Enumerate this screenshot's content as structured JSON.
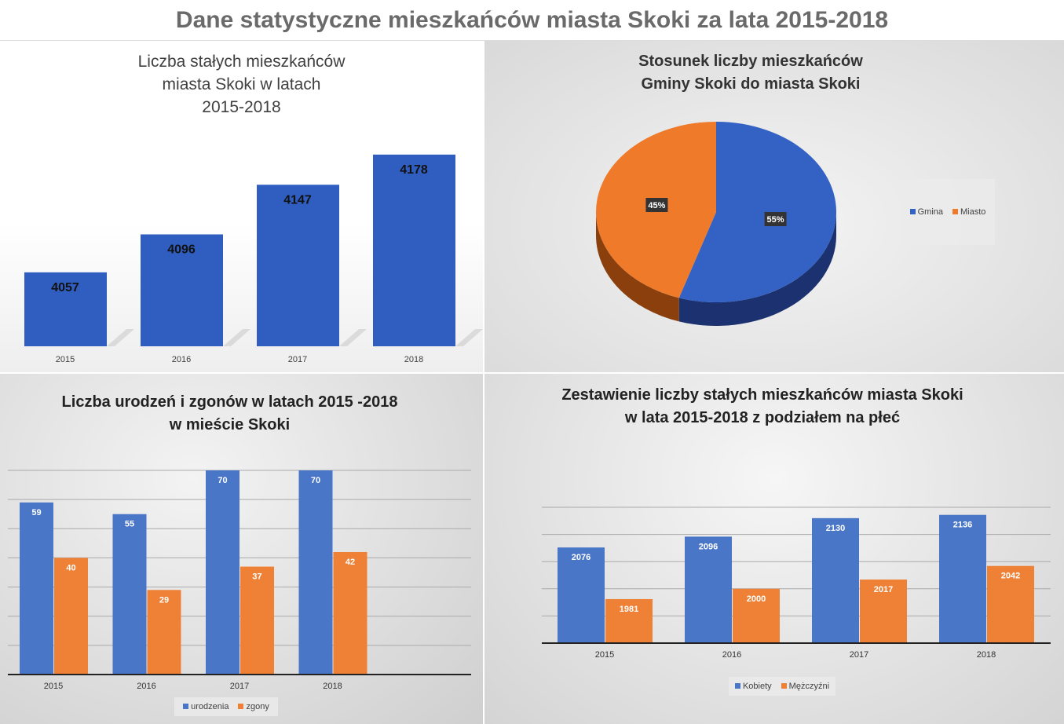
{
  "title": "Dane statystyczne mieszkańców miasta Skoki za lata 2015-2018",
  "chart_data": [
    {
      "type": "bar",
      "title": "Liczba stałych mieszkańców\nmiasta Skoki w latach\n2015-2018",
      "categories": [
        "2015",
        "2016",
        "2017",
        "2018"
      ],
      "values": [
        4057,
        4096,
        4147,
        4178
      ],
      "labels": [
        "4057",
        "4096",
        "4147",
        "4178"
      ],
      "ylim": [
        3981,
        4190
      ],
      "color": "#2f5ec0"
    },
    {
      "type": "pie",
      "title": "Stosunek liczby mieszkańców\nGminy Skoki do miasta Skoki",
      "slices": [
        {
          "name": "Gmina",
          "value": 55,
          "label": "55%",
          "color": "#3462c4"
        },
        {
          "name": "Miasto",
          "value": 45,
          "label": "45%",
          "color": "#ee7a2a"
        }
      ],
      "legend": "right"
    },
    {
      "type": "bar",
      "title": "Liczba urodzeń i zgonów w latach 2015 -2018\nw mieście Skoki",
      "categories": [
        "2015",
        "2016",
        "2017",
        "2018"
      ],
      "series": [
        {
          "name": "urodzenia",
          "values": [
            59,
            55,
            70,
            70
          ],
          "labels": [
            "59",
            "55",
            "70",
            "70"
          ],
          "color": "#4a76c8"
        },
        {
          "name": "zgony",
          "values": [
            40,
            29,
            37,
            42
          ],
          "labels": [
            "40",
            "29",
            "37",
            "42"
          ],
          "color": "#ef8136"
        }
      ],
      "ylim": [
        0,
        70
      ],
      "grid_step": 10,
      "legend": "bottom"
    },
    {
      "type": "bar",
      "title": "Zestawienie liczby stałych mieszkańców miasta Skoki\nw lata 2015-2018 z podziałem na płeć",
      "categories": [
        "2015",
        "2016",
        "2017",
        "2018"
      ],
      "series": [
        {
          "name": "Kobiety",
          "values": [
            2076,
            2096,
            2130,
            2136
          ],
          "labels": [
            "2076",
            "2096",
            "2130",
            "2136"
          ],
          "color": "#4a76c8"
        },
        {
          "name": "Mężczyźni",
          "values": [
            1981,
            2000,
            2017,
            2042
          ],
          "labels": [
            "1981",
            "2000",
            "2017",
            "2042"
          ],
          "color": "#ef8136"
        }
      ],
      "ylim": [
        1900,
        2150
      ],
      "grid_step": 50,
      "legend": "bottom"
    }
  ]
}
